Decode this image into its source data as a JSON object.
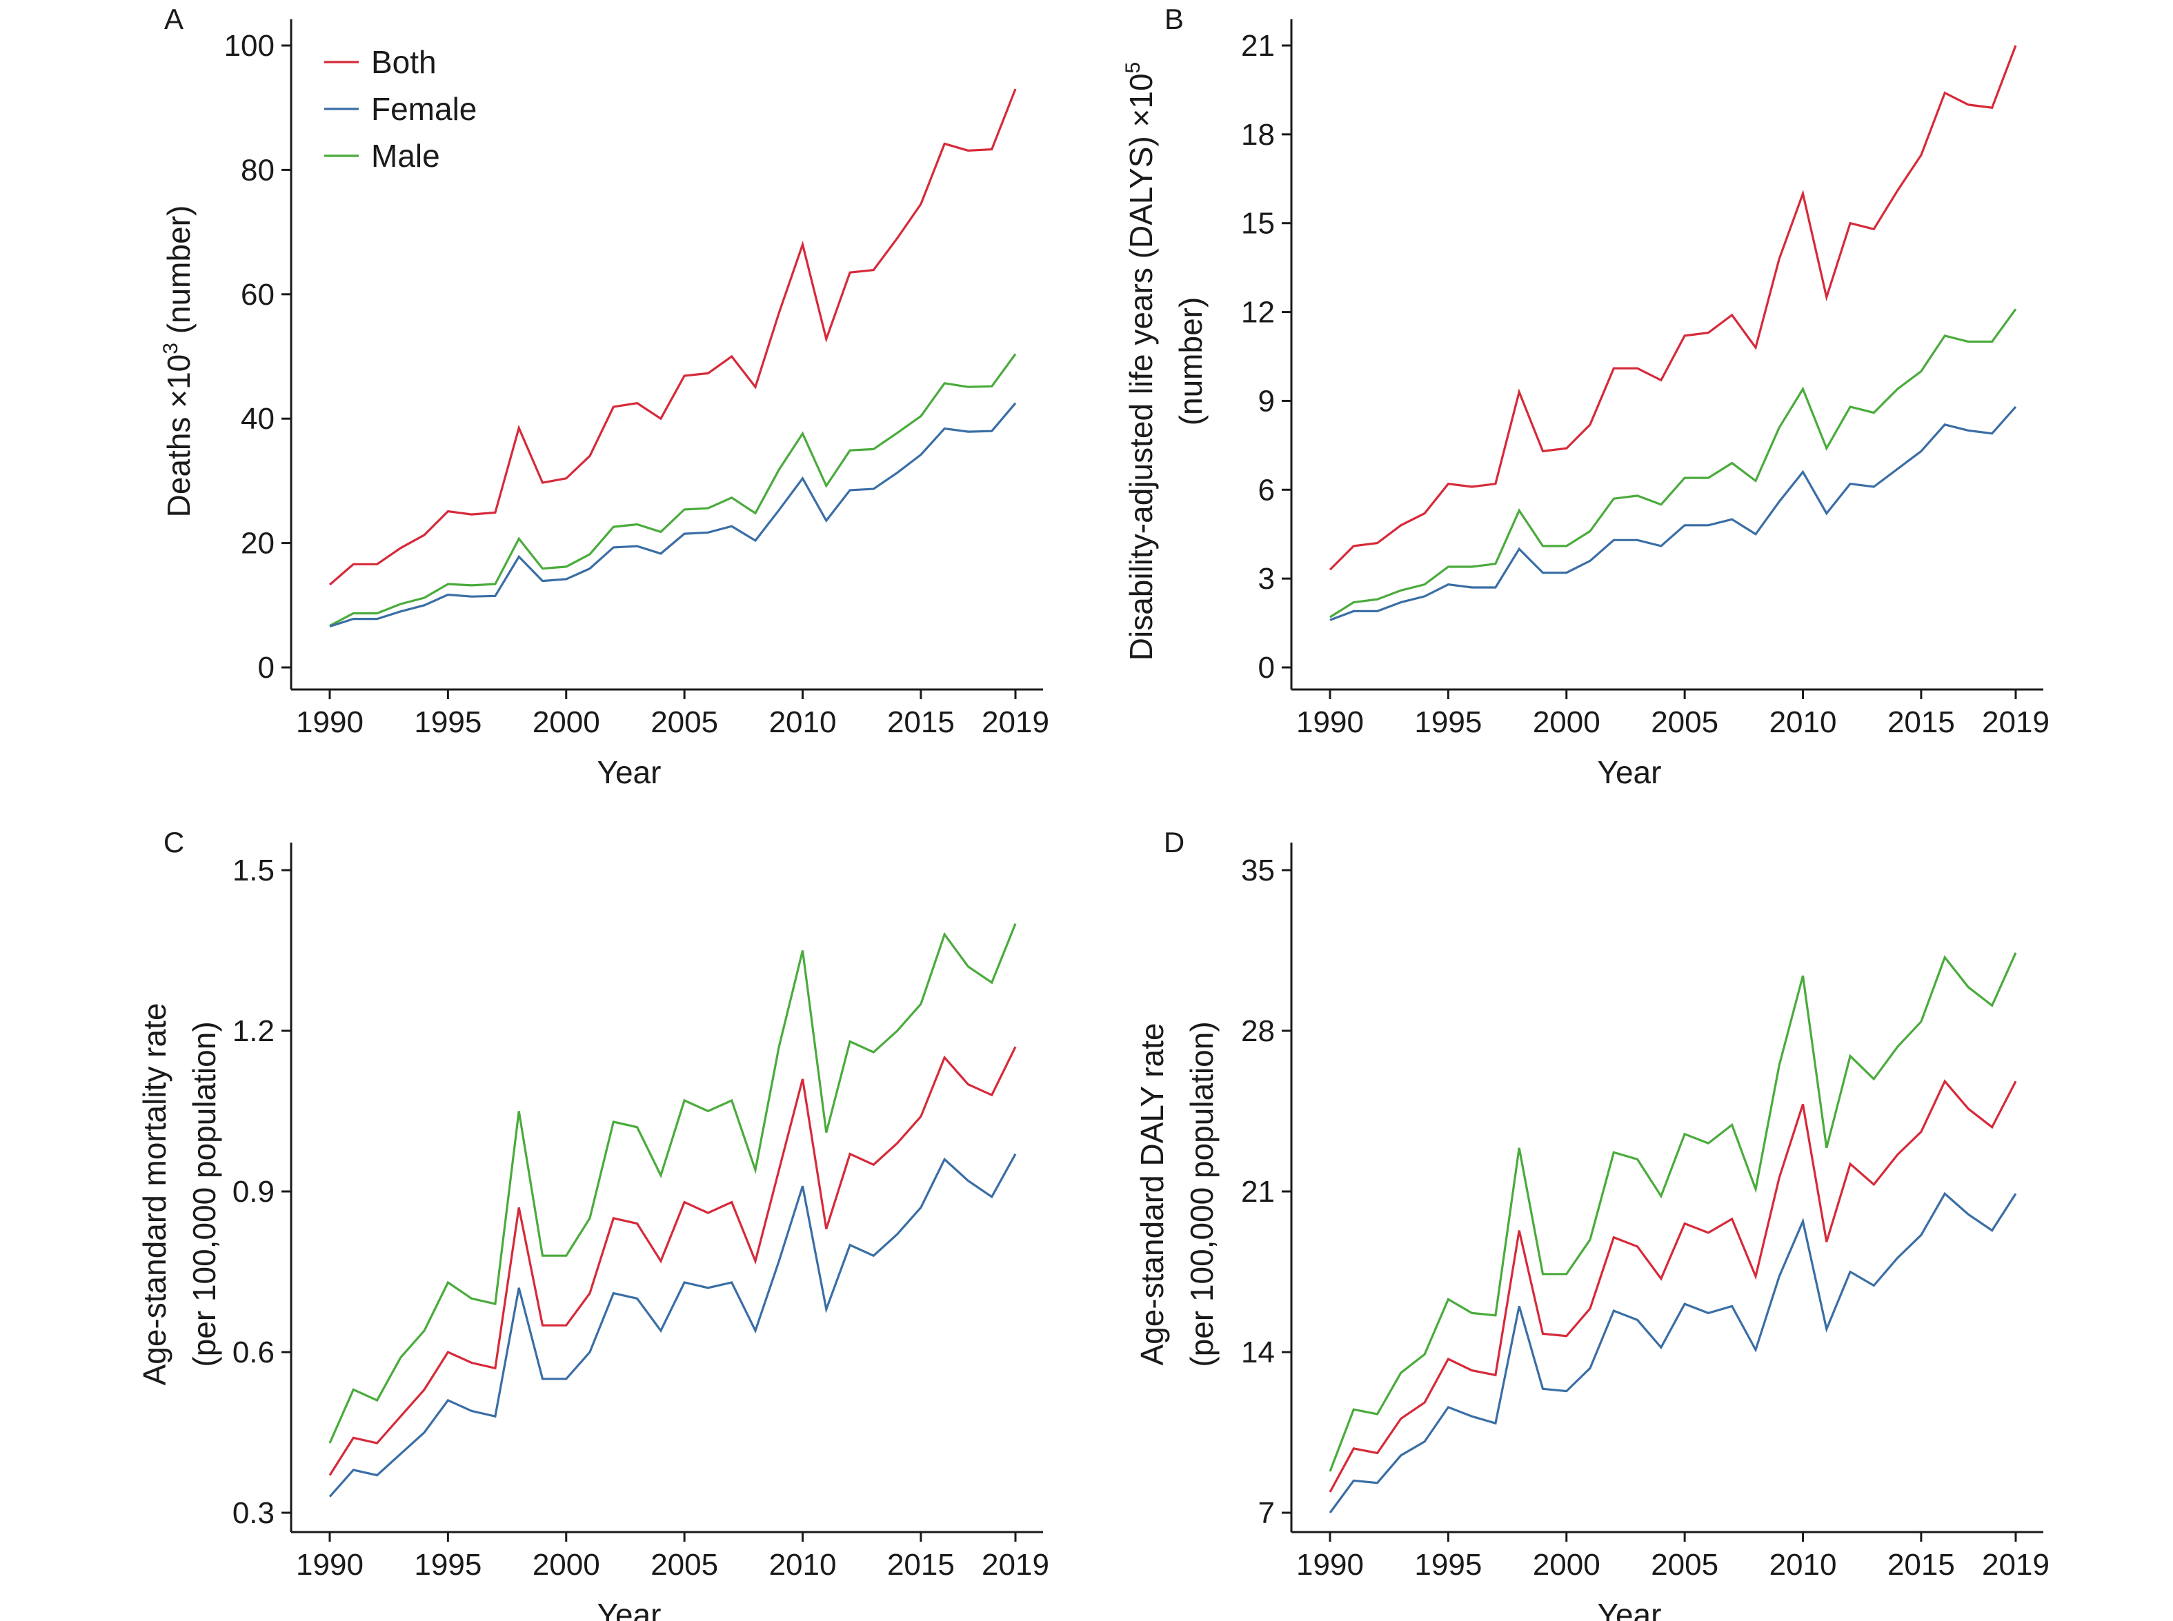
{
  "colors": {
    "Both": "#d62a3a",
    "Female": "#3a6ea5",
    "Male": "#4aab3c",
    "axis": "#1a1a1a"
  },
  "legend": {
    "placement": "top-left",
    "panel": 0,
    "entries": [
      "Both",
      "Female",
      "Male"
    ]
  },
  "chart_data": [
    {
      "type": "line",
      "panel": "A",
      "xlabel": "Year",
      "ylabel": "Deaths ×10",
      "ylabel_sup": "3",
      "ylabel_suffix": " (number)",
      "ylabel2": "",
      "xlim": [
        1990,
        2019
      ],
      "ylim": [
        0,
        100
      ],
      "xticks": [
        1990,
        1995,
        2000,
        2005,
        2010,
        2015,
        2019
      ],
      "yticks": [
        0,
        20,
        40,
        60,
        80,
        100
      ],
      "ytick_labels": [
        "0",
        "20",
        "40",
        "60",
        "80",
        "100"
      ],
      "grid": false,
      "x": [
        1990,
        1991,
        1992,
        1993,
        1994,
        1995,
        1996,
        1997,
        1998,
        1999,
        2000,
        2001,
        2002,
        2003,
        2004,
        2005,
        2006,
        2007,
        2008,
        2009,
        2010,
        2011,
        2012,
        2013,
        2014,
        2015,
        2016,
        2017,
        2018,
        2019
      ],
      "series": [
        {
          "name": "Both",
          "values": [
            13.3,
            16.6,
            16.6,
            19.2,
            21.3,
            25.1,
            24.6,
            24.9,
            38.5,
            29.7,
            30.4,
            34.0,
            41.9,
            42.5,
            40.0,
            46.9,
            47.3,
            50.0,
            45.1,
            57.0,
            68.0,
            52.8,
            63.5,
            63.9,
            69.0,
            74.5,
            84.2,
            83.1,
            83.3,
            93.0
          ]
        },
        {
          "name": "Female",
          "values": [
            6.6,
            7.8,
            7.8,
            9.0,
            10.0,
            11.7,
            11.4,
            11.5,
            17.8,
            13.9,
            14.2,
            15.9,
            19.3,
            19.5,
            18.3,
            21.5,
            21.7,
            22.7,
            20.4,
            25.3,
            30.4,
            23.6,
            28.5,
            28.7,
            31.3,
            34.2,
            38.4,
            37.9,
            38.0,
            42.5
          ]
        },
        {
          "name": "Male",
          "values": [
            6.7,
            8.7,
            8.7,
            10.2,
            11.2,
            13.4,
            13.2,
            13.4,
            20.7,
            15.9,
            16.2,
            18.2,
            22.6,
            23.0,
            21.8,
            25.4,
            25.6,
            27.3,
            24.8,
            31.8,
            37.6,
            29.2,
            34.9,
            35.1,
            37.7,
            40.4,
            45.7,
            45.1,
            45.2,
            50.4
          ]
        }
      ]
    },
    {
      "type": "line",
      "panel": "B",
      "xlabel": "Year",
      "ylabel": "Disability-adjusted life years (DALYS) ×10",
      "ylabel_sup": "5",
      "ylabel_suffix": "",
      "ylabel2": "(number)",
      "xlim": [
        1990,
        2019
      ],
      "ylim": [
        0,
        21
      ],
      "xticks": [
        1990,
        1995,
        2000,
        2005,
        2010,
        2015,
        2019
      ],
      "yticks": [
        0,
        3,
        6,
        9,
        12,
        15,
        18,
        21
      ],
      "ytick_labels": [
        "0",
        "3",
        "6",
        "9",
        "12",
        "15",
        "18",
        "21"
      ],
      "grid": false,
      "x": [
        1990,
        1991,
        1992,
        1993,
        1994,
        1995,
        1996,
        1997,
        1998,
        1999,
        2000,
        2001,
        2002,
        2003,
        2004,
        2005,
        2006,
        2007,
        2008,
        2009,
        2010,
        2011,
        2012,
        2013,
        2014,
        2015,
        2016,
        2017,
        2018,
        2019
      ],
      "series": [
        {
          "name": "Both",
          "values": [
            3.3,
            4.1,
            4.2,
            4.8,
            5.2,
            6.2,
            6.1,
            6.2,
            9.3,
            7.3,
            7.4,
            8.2,
            10.1,
            10.1,
            9.7,
            11.2,
            11.3,
            11.9,
            10.8,
            13.8,
            16.0,
            12.5,
            15.0,
            14.8,
            16.1,
            17.3,
            19.4,
            19.0,
            18.9,
            21.0
          ]
        },
        {
          "name": "Female",
          "values": [
            1.6,
            1.9,
            1.9,
            2.2,
            2.4,
            2.8,
            2.7,
            2.7,
            4.0,
            3.2,
            3.2,
            3.6,
            4.3,
            4.3,
            4.1,
            4.8,
            4.8,
            5.0,
            4.5,
            5.6,
            6.6,
            5.2,
            6.2,
            6.1,
            6.7,
            7.3,
            8.2,
            8.0,
            7.9,
            8.8
          ]
        },
        {
          "name": "Male",
          "values": [
            1.7,
            2.2,
            2.3,
            2.6,
            2.8,
            3.4,
            3.4,
            3.5,
            5.3,
            4.1,
            4.1,
            4.6,
            5.7,
            5.8,
            5.5,
            6.4,
            6.4,
            6.9,
            6.3,
            8.1,
            9.4,
            7.4,
            8.8,
            8.6,
            9.4,
            10.0,
            11.2,
            11.0,
            11.0,
            12.1
          ]
        }
      ]
    },
    {
      "type": "line",
      "panel": "C",
      "xlabel": "Year",
      "ylabel": "Age-standard mortality rate",
      "ylabel_sup": "",
      "ylabel_suffix": "",
      "ylabel2": "(per 100,000 population)",
      "xlim": [
        1990,
        2019
      ],
      "ylim": [
        0.24,
        1.56
      ],
      "xticks": [
        1990,
        1995,
        2000,
        2005,
        2010,
        2015,
        2019
      ],
      "yticks": [
        0.3,
        0.6,
        0.9,
        1.2,
        1.5
      ],
      "ytick_labels": [
        "0.3",
        "0.6",
        "0.9",
        "1.2",
        "1.5"
      ],
      "grid": false,
      "x": [
        1990,
        1991,
        1992,
        1993,
        1994,
        1995,
        1996,
        1997,
        1998,
        1999,
        2000,
        2001,
        2002,
        2003,
        2004,
        2005,
        2006,
        2007,
        2008,
        2009,
        2010,
        2011,
        2012,
        2013,
        2014,
        2015,
        2016,
        2017,
        2018,
        2019
      ],
      "series": [
        {
          "name": "Both",
          "values": [
            0.37,
            0.44,
            0.43,
            0.48,
            0.53,
            0.6,
            0.58,
            0.57,
            0.87,
            0.65,
            0.65,
            0.71,
            0.85,
            0.84,
            0.77,
            0.88,
            0.86,
            0.88,
            0.77,
            0.94,
            1.11,
            0.83,
            0.97,
            0.95,
            0.99,
            1.04,
            1.15,
            1.1,
            1.08,
            1.17
          ]
        },
        {
          "name": "Female",
          "values": [
            0.33,
            0.38,
            0.37,
            0.41,
            0.45,
            0.51,
            0.49,
            0.48,
            0.72,
            0.55,
            0.55,
            0.6,
            0.71,
            0.7,
            0.64,
            0.73,
            0.72,
            0.73,
            0.64,
            0.77,
            0.91,
            0.68,
            0.8,
            0.78,
            0.82,
            0.87,
            0.96,
            0.92,
            0.89,
            0.97
          ]
        },
        {
          "name": "Male",
          "values": [
            0.43,
            0.53,
            0.51,
            0.59,
            0.64,
            0.73,
            0.7,
            0.69,
            1.05,
            0.78,
            0.78,
            0.85,
            1.03,
            1.02,
            0.93,
            1.07,
            1.05,
            1.07,
            0.94,
            1.17,
            1.35,
            1.01,
            1.18,
            1.16,
            1.2,
            1.25,
            1.38,
            1.32,
            1.29,
            1.4
          ]
        }
      ]
    },
    {
      "type": "line",
      "panel": "D",
      "xlabel": "Year",
      "ylabel": "Age-standard DALY rate",
      "ylabel_sup": "",
      "ylabel_suffix": "",
      "ylabel2": "(per 100,000 population)",
      "xlim": [
        1990,
        2019
      ],
      "ylim": [
        5.6,
        36.9
      ],
      "xticks": [
        1990,
        1995,
        2000,
        2005,
        2010,
        2015,
        2019
      ],
      "yticks": [
        7,
        14,
        21,
        28,
        35
      ],
      "ytick_labels": [
        "7",
        "14",
        "21",
        "28",
        "35"
      ],
      "grid": false,
      "x": [
        1990,
        1991,
        1992,
        1993,
        1994,
        1995,
        1996,
        1997,
        1998,
        1999,
        2000,
        2001,
        2002,
        2003,
        2004,
        2005,
        2006,
        2007,
        2008,
        2009,
        2010,
        2011,
        2012,
        2013,
        2014,
        2015,
        2016,
        2017,
        2018,
        2019
      ],
      "series": [
        {
          "name": "Both",
          "values": [
            7.9,
            9.8,
            9.6,
            11.1,
            11.8,
            13.7,
            13.2,
            13.0,
            19.3,
            14.8,
            14.7,
            15.9,
            19.0,
            18.6,
            17.2,
            19.6,
            19.2,
            19.8,
            17.3,
            21.6,
            24.8,
            18.8,
            22.2,
            21.3,
            22.6,
            23.6,
            25.8,
            24.6,
            23.8,
            25.8
          ]
        },
        {
          "name": "Female",
          "values": [
            7.0,
            8.4,
            8.3,
            9.5,
            10.1,
            11.6,
            11.2,
            10.9,
            16.0,
            12.4,
            12.3,
            13.3,
            15.8,
            15.4,
            14.2,
            16.1,
            15.7,
            16.0,
            14.1,
            17.3,
            19.7,
            15.0,
            17.5,
            16.9,
            18.1,
            19.1,
            20.9,
            20.0,
            19.3,
            20.9
          ]
        },
        {
          "name": "Male",
          "values": [
            8.8,
            11.5,
            11.3,
            13.1,
            13.9,
            16.3,
            15.7,
            15.6,
            22.9,
            17.4,
            17.4,
            18.9,
            22.7,
            22.4,
            20.8,
            23.5,
            23.1,
            23.9,
            21.1,
            26.5,
            30.4,
            22.9,
            26.9,
            25.9,
            27.3,
            28.4,
            31.2,
            29.9,
            29.1,
            31.4
          ]
        }
      ]
    }
  ]
}
